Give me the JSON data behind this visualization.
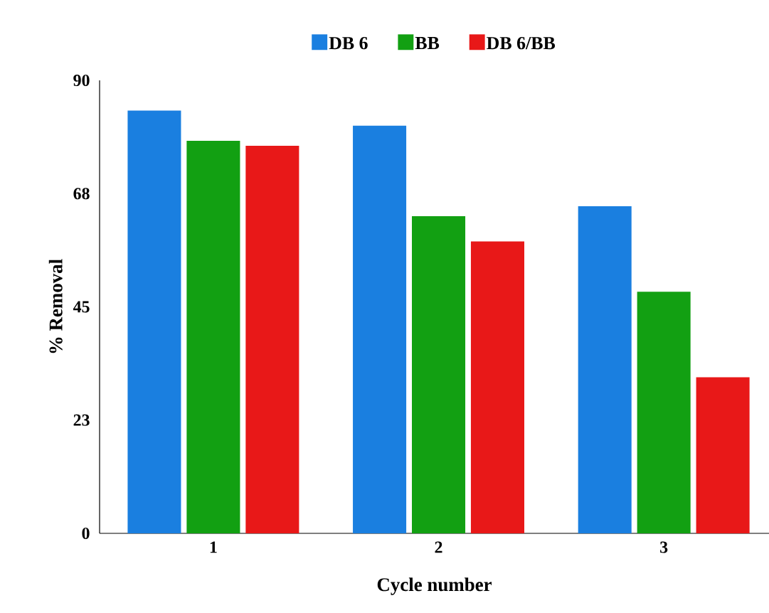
{
  "chart_data": {
    "type": "bar",
    "xlabel": "Cycle number",
    "ylabel": "% Removal",
    "categories": [
      "1",
      "2",
      "3"
    ],
    "series": [
      {
        "name": "DB 6",
        "color": "#1a7fe0",
        "values": [
          84,
          81,
          65
        ]
      },
      {
        "name": "BB",
        "color": "#12a012",
        "values": [
          78,
          63,
          48
        ]
      },
      {
        "name": "DB 6/BB",
        "color": "#e81818",
        "values": [
          77,
          58,
          31
        ]
      }
    ],
    "ylim": [
      0,
      90
    ],
    "yticks": [
      0,
      {
        "value": 22.5,
        "label": "23"
      },
      45,
      {
        "value": 67.5,
        "label": "68"
      },
      90
    ],
    "legend": "top"
  }
}
